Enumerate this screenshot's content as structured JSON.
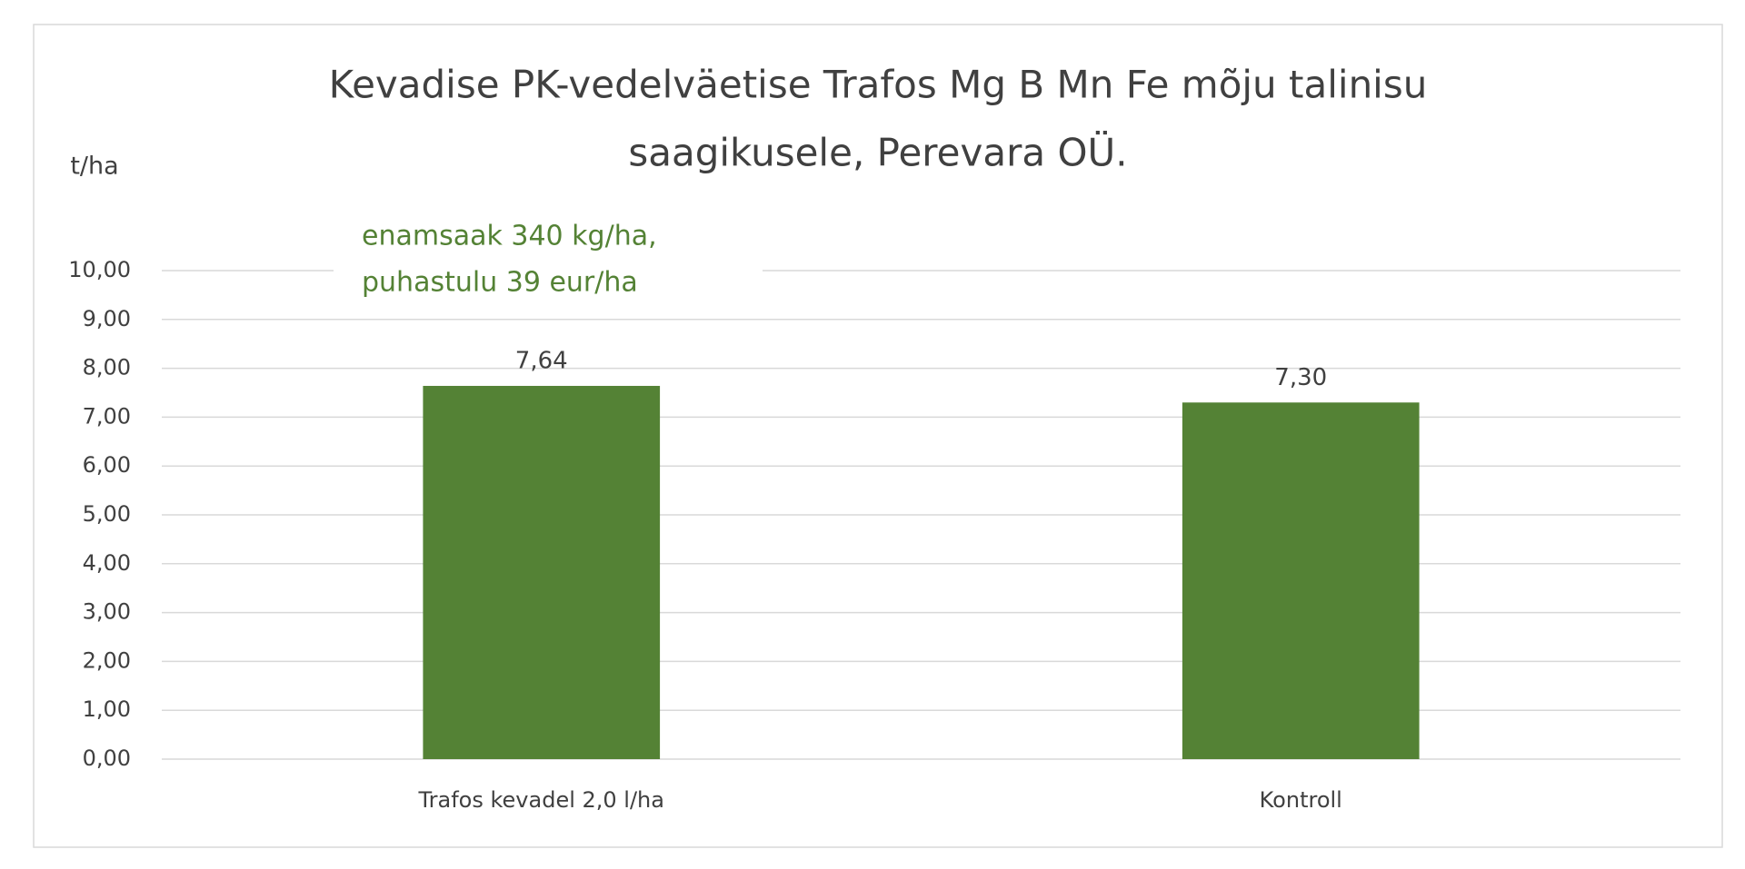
{
  "chart_data": {
    "type": "bar",
    "title": [
      "Kevadise PK-vedelväetise Trafos Mg B Mn Fe mõju talinisu",
      "saagikusele, Perevara OÜ."
    ],
    "y_label": "t/ha",
    "annotation": [
      "enamsaak 340 kg/ha,",
      "puhastulu 39 eur/ha"
    ],
    "categories": [
      "Trafos kevadel 2,0 l/ha",
      "Kontroll"
    ],
    "values": [
      7.64,
      7.3
    ],
    "value_labels": [
      "7,64",
      "7,30"
    ],
    "color": "#548235",
    "ylim": [
      0,
      10
    ],
    "yticks": [
      {
        "value": 0,
        "label": "0,00"
      },
      {
        "value": 1,
        "label": "1,00"
      },
      {
        "value": 2,
        "label": "2,00"
      },
      {
        "value": 3,
        "label": "3,00"
      },
      {
        "value": 4,
        "label": "4,00"
      },
      {
        "value": 5,
        "label": "5,00"
      },
      {
        "value": 6,
        "label": "6,00"
      },
      {
        "value": 7,
        "label": "7,00"
      },
      {
        "value": 8,
        "label": "8,00"
      },
      {
        "value": 9,
        "label": "9,00"
      },
      {
        "value": 10,
        "label": "10,00"
      }
    ],
    "grid": true
  }
}
